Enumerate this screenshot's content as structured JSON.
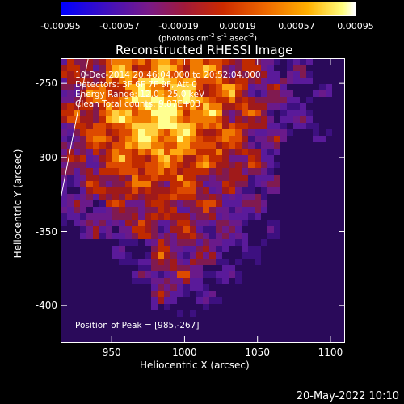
{
  "chart_data": {
    "type": "heatmap",
    "title": "Reconstructed RHESSI Image",
    "xlabel": "Heliocentric X (arcsec)",
    "ylabel": "Heliocentric Y (arcsec)",
    "xlim": [
      915,
      1110
    ],
    "ylim": [
      -425,
      -233
    ],
    "x_ticks": [
      950,
      1000,
      1050,
      1100
    ],
    "y_ticks": [
      -250,
      -300,
      -350,
      -400
    ],
    "colorbar": {
      "ticks": [
        "-0.00095",
        "-0.00057",
        "-0.00019",
        "0.00019",
        "0.00057",
        "0.00095"
      ],
      "min": -0.00095,
      "max": 0.00095,
      "unit_main": "(photons cm",
      "unit_exp1": "-2",
      "unit_mid1": " s",
      "unit_exp2": "-1",
      "unit_mid2": " asec",
      "unit_exp3": "-2",
      "unit_end": ")"
    },
    "annotations": {
      "time_range": "10-Dec-2014 20:46:04.000 to 20:52:04.000",
      "detectors": "Detectors: 3F 6F 7F 9F, Att 0",
      "energy": "Energy Range: 12.0 - 25.0 keV",
      "method": "Clean    Total counts: 9.87E+03",
      "peak": "Position of Peak = [985,-267]"
    },
    "peak": [
      985,
      -267
    ],
    "limb_line": [
      [
        915,
        -328
      ],
      [
        934,
        -233
      ]
    ],
    "colors": {
      "low": "#4a12b4",
      "mid": "#cc2a00",
      "high": "#ffff80"
    }
  },
  "footer": {
    "date": "20-May-2022 10:10"
  }
}
